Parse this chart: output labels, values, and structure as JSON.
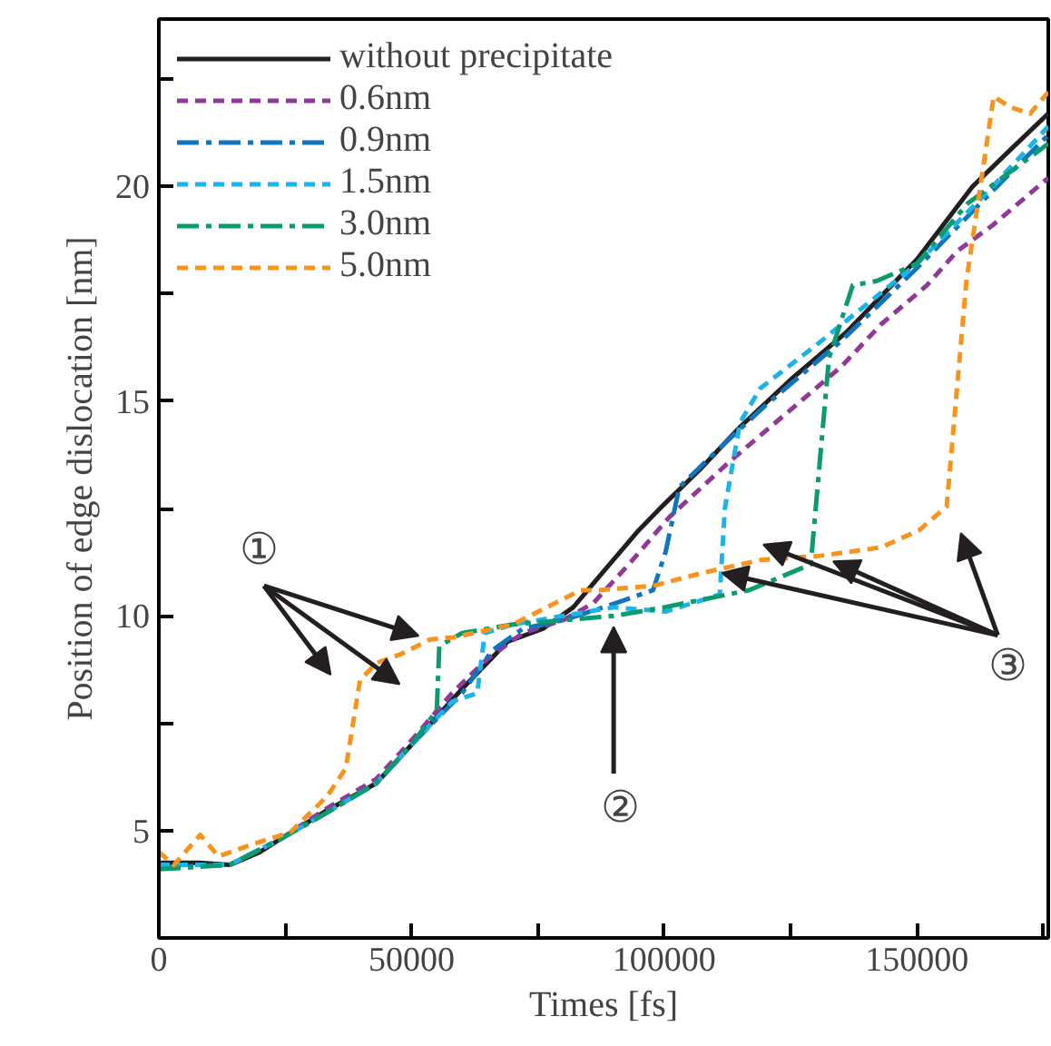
{
  "chart_data": {
    "type": "line",
    "xlabel": "Times [fs]",
    "ylabel": "Position of edge dislocation [nm]",
    "xlim": [
      0,
      176000
    ],
    "ylim": [
      2.5,
      23.9
    ],
    "xticks": [
      0,
      {
        "value": 25000,
        "label": null
      },
      50000,
      {
        "value": 75000,
        "label": null
      },
      100000,
      {
        "value": 125000,
        "label": null
      },
      150000,
      {
        "value": 175000,
        "label": null
      }
    ],
    "yticks": [
      {
        "value": 2.5,
        "label": null
      },
      5,
      {
        "value": 7.5,
        "label": null
      },
      10,
      {
        "value": 12.5,
        "label": null
      },
      15,
      {
        "value": 17.5,
        "label": null
      },
      20,
      {
        "value": 22.5,
        "label": null
      }
    ],
    "grid": false,
    "legend": "top left",
    "series": [
      {
        "name": "without precipitate",
        "color": "#231f20",
        "line_style": "solid",
        "x": [
          0,
          8000,
          14000,
          20000,
          24000,
          33000,
          43000,
          50000,
          60000,
          69000,
          76000,
          82000,
          87000,
          95000,
          100000,
          107000,
          115000,
          125000,
          136000,
          145000,
          150000,
          161000,
          168000,
          176000
        ],
        "values": [
          4.25,
          4.25,
          4.2,
          4.5,
          4.8,
          5.45,
          6.1,
          7.0,
          8.3,
          9.4,
          9.7,
          10.2,
          10.9,
          12.0,
          12.6,
          13.4,
          14.4,
          15.5,
          16.6,
          17.7,
          18.3,
          20.0,
          20.8,
          21.7
        ]
      },
      {
        "name": "0.6nm",
        "color": "#8e3a96",
        "line_style": "dashed",
        "x": [
          0,
          14000,
          24000,
          33000,
          43000,
          50000,
          58000,
          65000,
          72000,
          80000,
          86000,
          93000,
          101000,
          113000,
          125000,
          135000,
          143000,
          152000,
          158000,
          165000,
          176000
        ],
        "values": [
          4.2,
          4.2,
          4.8,
          5.5,
          6.2,
          7.1,
          8.2,
          9.0,
          9.6,
          9.9,
          10.3,
          11.2,
          12.3,
          13.6,
          14.8,
          15.8,
          16.8,
          17.7,
          18.5,
          19.1,
          20.2
        ]
      },
      {
        "name": "0.9nm",
        "color": "#0f75bc",
        "line_style": "dashdot",
        "x": [
          0,
          14000,
          24000,
          33000,
          43000,
          50000,
          60000,
          66000,
          72000,
          80000,
          88000,
          97800,
          100300,
          103000,
          110000,
          120000,
          135000,
          150000,
          165000,
          176000
        ],
        "values": [
          4.15,
          4.2,
          4.8,
          5.4,
          6.1,
          7.0,
          8.2,
          9.2,
          9.7,
          9.9,
          10.2,
          10.6,
          11.5,
          13.0,
          13.8,
          14.9,
          16.4,
          18.1,
          19.9,
          21.2
        ]
      },
      {
        "name": "1.5nm",
        "color": "#1cb4e8",
        "line_style": "dashed",
        "x": [
          0,
          14000,
          24000,
          33000,
          43000,
          50000,
          58000,
          63000,
          64500,
          70000,
          80000,
          90000,
          100300,
          111000,
          112000,
          115000,
          119000,
          130000,
          150000,
          165000,
          176000
        ],
        "values": [
          4.2,
          4.2,
          4.8,
          5.4,
          6.1,
          7.0,
          8.0,
          8.2,
          9.6,
          9.8,
          10.0,
          10.2,
          10.1,
          10.5,
          12.5,
          14.5,
          15.3,
          16.3,
          18.2,
          20.0,
          21.4
        ]
      },
      {
        "name": "3.0nm",
        "color": "#0a9b6e",
        "line_style": "dashdot",
        "x": [
          0,
          14000,
          24000,
          33000,
          43000,
          50000,
          55000,
          55500,
          60000,
          70000,
          80000,
          90000,
          100000,
          116800,
          129000,
          132600,
          137300,
          142000,
          150000,
          160000,
          176000
        ],
        "values": [
          4.1,
          4.2,
          4.8,
          5.4,
          6.1,
          7.0,
          7.8,
          9.3,
          9.6,
          9.8,
          9.9,
          10.0,
          10.2,
          10.6,
          11.2,
          16.0,
          17.7,
          17.8,
          18.2,
          19.6,
          21.0
        ]
      },
      {
        "name": "5.0nm",
        "color": "#f7941d",
        "line_style": "dashed",
        "x": [
          0,
          3000,
          8200,
          11800,
          19000,
          26000,
          33300,
          37000,
          39800,
          43000,
          47700,
          53700,
          58400,
          70000,
          83500,
          87000,
          97800,
          107500,
          119000,
          131000,
          143000,
          150500,
          155900,
          159800,
          165200,
          168400,
          172400,
          176000
        ],
        "values": [
          4.5,
          4.2,
          4.9,
          4.4,
          4.7,
          4.96,
          5.8,
          6.45,
          8.5,
          8.9,
          9.1,
          9.45,
          9.5,
          9.8,
          10.6,
          10.6,
          10.7,
          11.0,
          11.3,
          11.4,
          11.6,
          12.0,
          12.55,
          17.8,
          22.1,
          21.85,
          21.7,
          22.2
        ]
      }
    ],
    "annotations": [
      {
        "text": "①",
        "x": 53700,
        "y": 9.45
      },
      {
        "text": "②",
        "x": 90000,
        "y": 10.0
      },
      {
        "text": "③",
        "x": 131000,
        "y": 11.4
      }
    ]
  }
}
